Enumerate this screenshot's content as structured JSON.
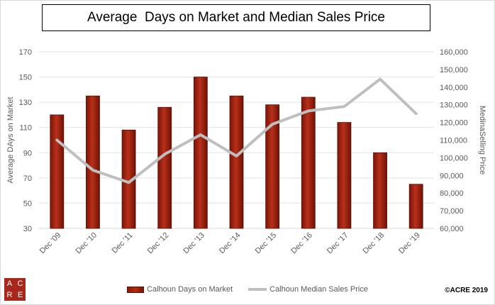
{
  "chart_data": {
    "type": "bar+line",
    "title": "Average  Days on Market and Median Sales Price",
    "categories": [
      "Dec '09",
      "Dec '10",
      "Dec '11",
      "Dec '12",
      "Dec '13",
      "Dec '14",
      "Dec '15",
      "Dec '16",
      "Dec '17",
      "Dec '18",
      "Dec '19"
    ],
    "series": [
      {
        "name": "Calhoun Days on Market",
        "type": "bar",
        "axis": "left",
        "color": "#9b2210",
        "values": [
          120,
          135,
          108,
          126,
          150,
          135,
          128,
          134,
          114,
          90,
          65
        ]
      },
      {
        "name": "Calhoun Median Sales Price",
        "type": "line",
        "axis": "right",
        "color": "#bfbfbf",
        "values": [
          110000,
          93000,
          86000,
          102000,
          113000,
          101000,
          119000,
          126500,
          129000,
          144500,
          125000
        ]
      }
    ],
    "ylabel": "Average DAys on Market",
    "y2label": "MedinaSelling Price",
    "ylim": [
      30,
      170
    ],
    "yticks": [
      "30",
      "50",
      "70",
      "90",
      "110",
      "130",
      "150",
      "170"
    ],
    "y2lim": [
      60000,
      160000
    ],
    "y2ticks": [
      "60,000",
      "70,000",
      "80,000",
      "90,000",
      "100,000",
      "110,000",
      "120,000",
      "130,000",
      "140,000",
      "150,000",
      "160,000"
    ],
    "grid": true,
    "legend_position": "bottom"
  },
  "logo": {
    "letters": [
      "A",
      "C",
      "R",
      "E"
    ],
    "color": "#a8271c"
  },
  "copyright": "©ACRE 2019"
}
